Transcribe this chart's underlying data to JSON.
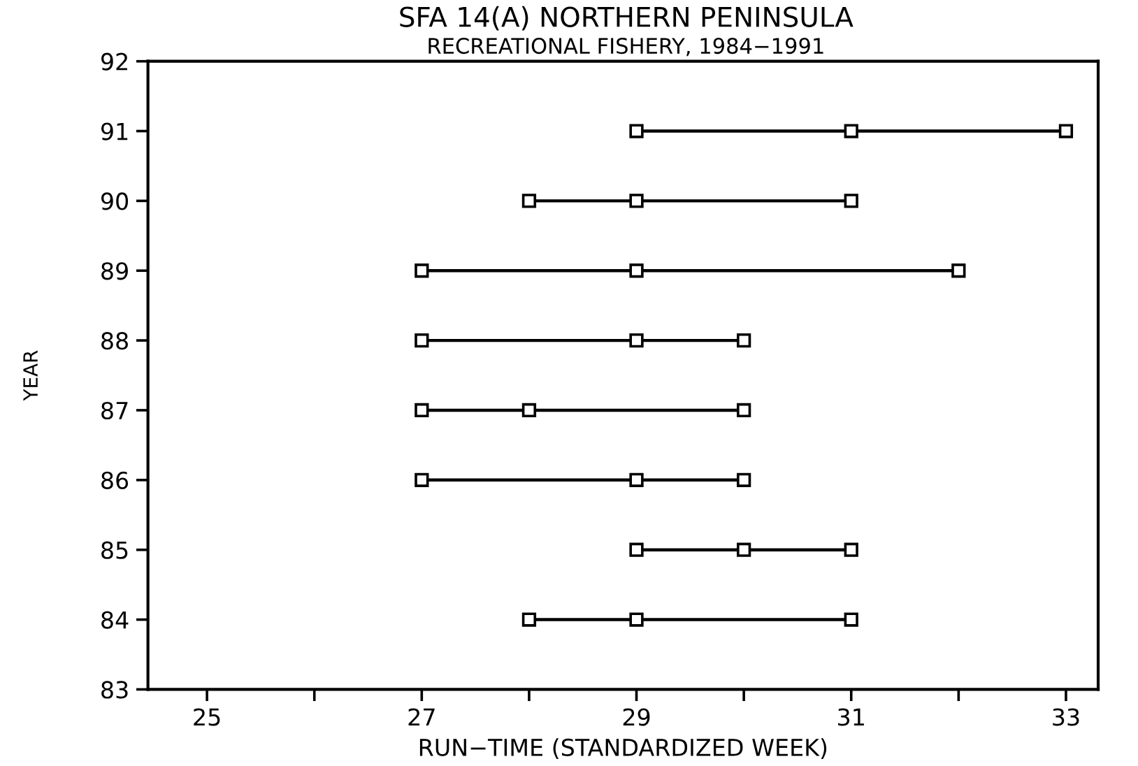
{
  "chart_data": {
    "type": "line",
    "title": "SFA 14(A) NORTHERN PENINSULA",
    "subtitle": "RECREATIONAL FISHERY, 1984−1991",
    "xlabel": "RUN−TIME (STANDARDIZED WEEK)",
    "ylabel": "YEAR",
    "series": [
      {
        "color": "#000000",
        "x": [
          28,
          29,
          31
        ],
        "values": [
          84,
          84,
          84
        ]
      },
      {
        "color": "#000000",
        "x": [
          29,
          30,
          31
        ],
        "values": [
          85,
          85,
          85
        ]
      },
      {
        "color": "#000000",
        "x": [
          27,
          29,
          30
        ],
        "values": [
          86,
          86,
          86
        ]
      },
      {
        "color": "#000000",
        "x": [
          27,
          28,
          30
        ],
        "values": [
          87,
          87,
          87
        ]
      },
      {
        "color": "#000000",
        "x": [
          27,
          29,
          30
        ],
        "values": [
          88,
          88,
          88
        ]
      },
      {
        "color": "#000000",
        "x": [
          27,
          29,
          32
        ],
        "values": [
          89,
          89,
          89
        ]
      },
      {
        "color": "#000000",
        "x": [
          28,
          29,
          31
        ],
        "values": [
          90,
          90,
          90
        ]
      },
      {
        "color": "#000000",
        "x": [
          29,
          31,
          33
        ],
        "values": [
          91,
          91,
          91
        ]
      }
    ],
    "xlim": [
      24.45,
      33.3
    ],
    "xticks": [
      25,
      {
        "value": 26,
        "label": null
      },
      27,
      {
        "value": 28,
        "label": null
      },
      29,
      {
        "value": 30,
        "label": null
      },
      31,
      {
        "value": 32,
        "label": null
      },
      33
    ],
    "ylim": [
      83,
      92
    ],
    "yticks": [
      83,
      84,
      85,
      86,
      87,
      88,
      89,
      90,
      91,
      92
    ],
    "marker": "square",
    "line_style": "solid",
    "grid": false,
    "legend": false
  }
}
